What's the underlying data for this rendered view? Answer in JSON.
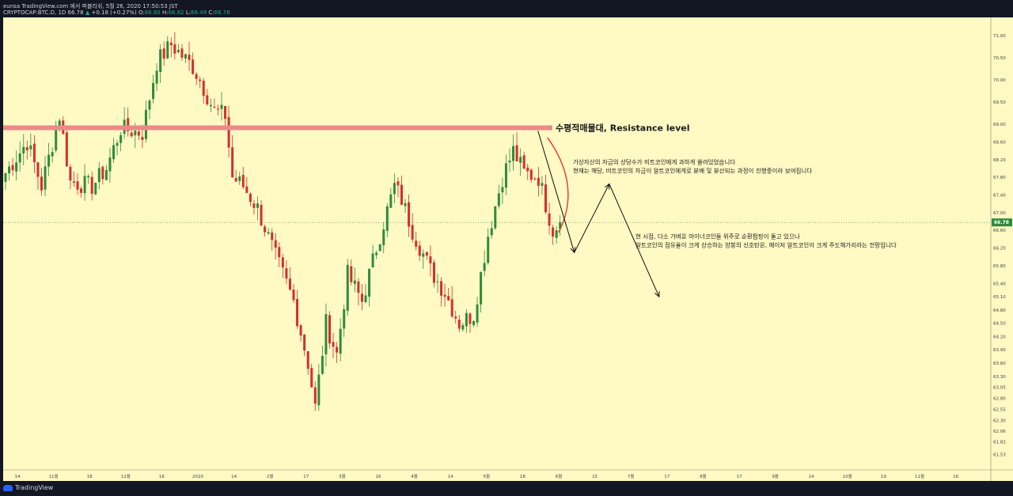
{
  "header": {
    "publish_line": "eunsa TradingView.com 에서 퍼블리쉬, 5월 26, 2020 17:50:53 JST",
    "symbol": "CRYPTOCAP:BTC.D, 1D",
    "last": "66.78",
    "change": "+0.18 (+0.27%)",
    "o_label": "O:",
    "o": "66.60",
    "h_label": "H:",
    "h": "66.82",
    "l_label": "L:",
    "l": "66.49",
    "c_label": "C:",
    "c": "66.78"
  },
  "footer": {
    "brand": "TradingView"
  },
  "colors": {
    "bg": "#fff9c4",
    "up": "#2e8b3e",
    "down": "#d32f2f",
    "resistance": "#e88a8a",
    "frame": "#131722",
    "price_tag": "#2e8b3e"
  },
  "chart_data": {
    "type": "candlestick",
    "ylim": [
      61.4,
      71.2
    ],
    "price_ticks": [
      "71.00",
      "70.50",
      "70.00",
      "69.50",
      "69.00",
      "68.60",
      "68.20",
      "67.80",
      "67.40",
      "67.00",
      "66.60",
      "66.20",
      "65.80",
      "65.40",
      "65.10",
      "64.80",
      "64.50",
      "64.20",
      "63.90",
      "63.60",
      "63.30",
      "63.05",
      "62.80",
      "62.55",
      "62.30",
      "62.06",
      "61.82",
      "61.53"
    ],
    "time_ticks": [
      "14",
      "11월",
      "18",
      "12월",
      "16",
      "2020",
      "14",
      "2월",
      "17",
      "3월",
      "16",
      "4월",
      "14",
      "5월",
      "18",
      "6월",
      "15",
      "7월",
      "17",
      "8월",
      "17",
      "9월",
      "14",
      "10월",
      "19",
      "11월",
      "16"
    ],
    "current_price": "66.78",
    "resistance": {
      "value": 68.92,
      "label": "수평적매물대, Resistance level"
    },
    "annotations": [
      "가상자산의 자금의 상당수가 비트코인에게 과하게 쏠려있었습니다",
      "현재는 해당, 비트코인의 자금이 알트코인에게로 분배 및 분산되는 과정이 진행중이라 보여집니다",
      "현 시점, 다소 가벼운 마이너코인들 위주로 순환펌핑이 돌고 있으나",
      "알트코인의 점유율이 크게 상승하는 양봉의 신호탄은, 메이저 알트코인이 크게 주도해가리라는 전망입니다"
    ],
    "projection": [
      {
        "bar": 0,
        "price": 66.1
      },
      {
        "bar": 7,
        "price": 67.65
      },
      {
        "bar": 17,
        "price": 65.1
      }
    ],
    "segments": [
      [
        0,
        67.9
      ],
      [
        6,
        68.6
      ],
      [
        10,
        67.6
      ],
      [
        15,
        69.2
      ],
      [
        18,
        67.7
      ],
      [
        24,
        67.6
      ],
      [
        28,
        68.0
      ],
      [
        32,
        68.9
      ],
      [
        38,
        68.8
      ],
      [
        42,
        70.4
      ],
      [
        46,
        70.8
      ],
      [
        52,
        70.3
      ],
      [
        54,
        70.0
      ],
      [
        58,
        69.3
      ],
      [
        61,
        69.2
      ],
      [
        63,
        67.8
      ],
      [
        66,
        67.6
      ],
      [
        70,
        67.1
      ],
      [
        75,
        66.0
      ],
      [
        80,
        65.0
      ],
      [
        84,
        63.6
      ],
      [
        86,
        62.6
      ],
      [
        89,
        64.5
      ],
      [
        92,
        63.8
      ],
      [
        95,
        65.6
      ],
      [
        99,
        65.0
      ],
      [
        104,
        66.5
      ],
      [
        108,
        67.6
      ],
      [
        110,
        67.3
      ],
      [
        113,
        66.6
      ],
      [
        118,
        65.7
      ],
      [
        122,
        65.2
      ],
      [
        126,
        64.5
      ],
      [
        130,
        64.7
      ],
      [
        134,
        66.5
      ],
      [
        138,
        67.8
      ],
      [
        141,
        68.4
      ],
      [
        144,
        67.9
      ],
      [
        148,
        67.8
      ],
      [
        152,
        66.6
      ],
      [
        154,
        66.78
      ]
    ]
  }
}
